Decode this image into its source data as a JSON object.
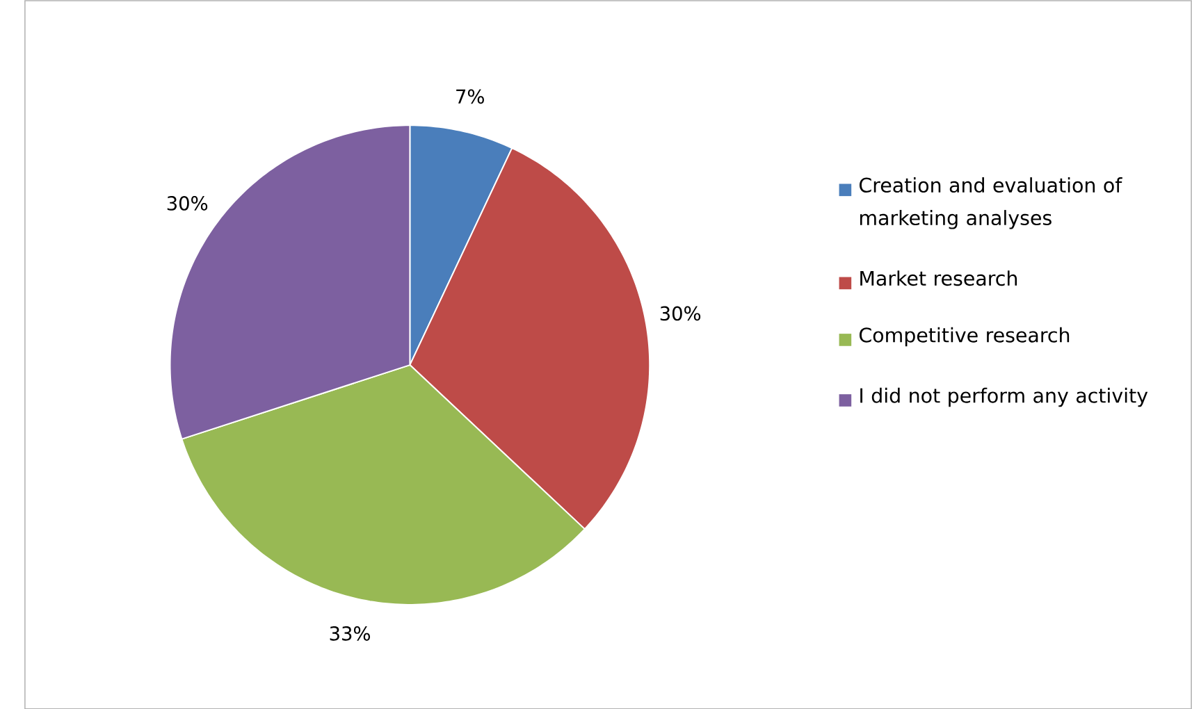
{
  "chart_data": {
    "type": "pie",
    "categories": [
      "Creation and evaluation of marketing analyses",
      "Market research",
      "Competitive research",
      "I did not perform any activity"
    ],
    "values": [
      7,
      30,
      33,
      30
    ],
    "colors": [
      "#4a7ebb",
      "#be4b48",
      "#98b954",
      "#7d60a0"
    ],
    "value_labels": [
      "7%",
      "30%",
      "33%",
      "30%"
    ],
    "legend": "right"
  }
}
